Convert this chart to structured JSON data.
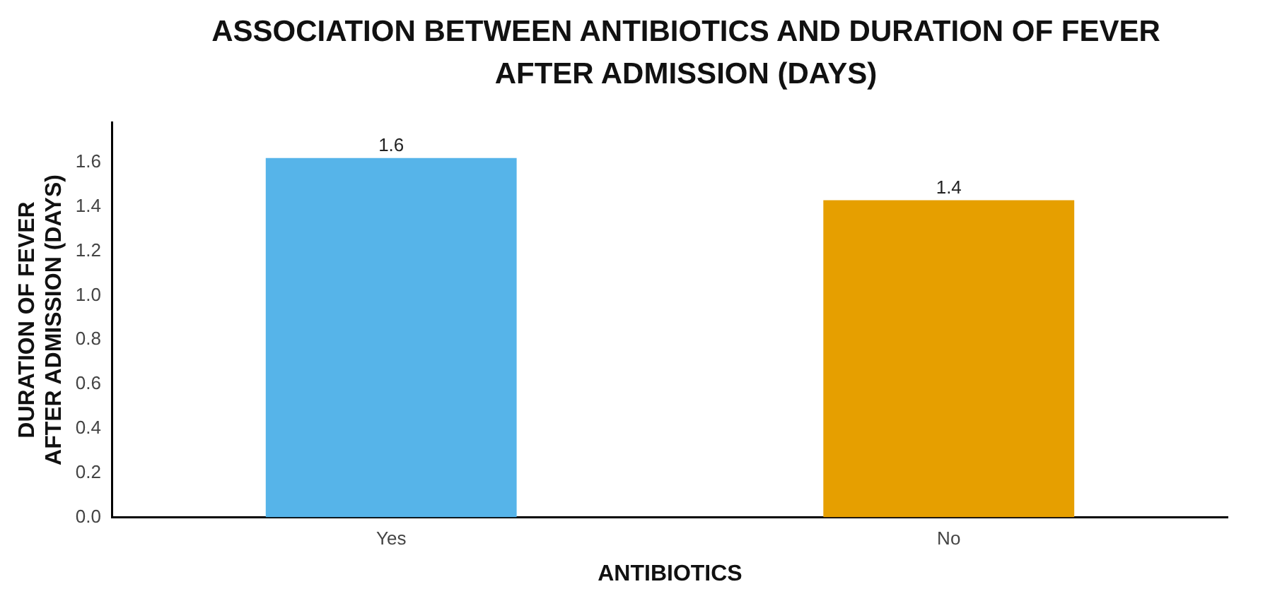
{
  "chart_data": {
    "type": "bar",
    "title": "ASSOCIATION BETWEEN ANTIBIOTICS AND DURATION OF FEVER AFTER ADMISSION (DAYS)",
    "xlabel": "ANTIBIOTICS",
    "ylabel": "DURATION OF FEVER AFTER ADMISSION (DAYS)",
    "categories": [
      "Yes",
      "No"
    ],
    "values": [
      1.62,
      1.43
    ],
    "colors": [
      "#56b4e9",
      "#e69f00"
    ],
    "value_labels": [
      "1.6",
      "1.4"
    ],
    "ylim": [
      0,
      1.78
    ],
    "yticks": [
      {
        "value": 0,
        "label": "0.0"
      },
      {
        "value": 0.2,
        "label": "0.2"
      },
      {
        "value": 0.4,
        "label": "0.4"
      },
      {
        "value": 0.6,
        "label": "0.6"
      },
      {
        "value": 0.8,
        "label": "0.8"
      },
      {
        "value": 1,
        "label": "1.0"
      },
      {
        "value": 1.2,
        "label": "1.2"
      },
      {
        "value": 1.4,
        "label": "1.4"
      },
      {
        "value": 1.6,
        "label": "1.6"
      }
    ],
    "grid": false,
    "legend": false
  }
}
